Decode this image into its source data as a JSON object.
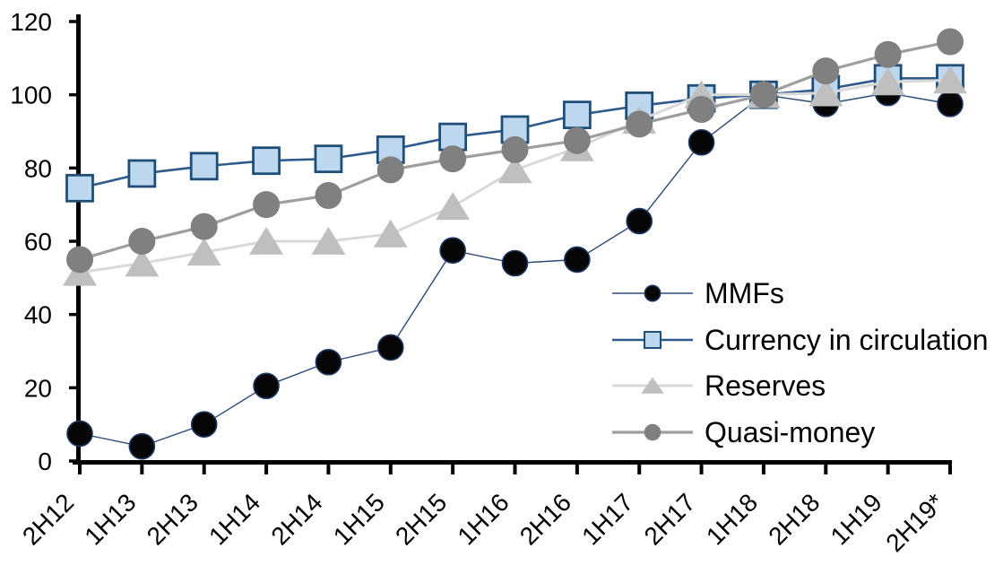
{
  "chart_data": {
    "type": "line",
    "categories": [
      "2H12",
      "1H13",
      "2H13",
      "1H14",
      "2H14",
      "1H15",
      "2H15",
      "1H16",
      "2H16",
      "1H17",
      "2H17",
      "1H18",
      "2H18",
      "1H19",
      "2H19*"
    ],
    "series": [
      {
        "name": "MMFs",
        "marker": "circle",
        "marker_fill": "#060606",
        "marker_stroke": "#1F3864",
        "line_color": "#2B4A77",
        "line_width": 1.4,
        "marker_size": 28,
        "values": [
          7.5,
          4,
          10,
          20.5,
          27,
          31,
          57.5,
          54,
          55,
          65.5,
          87,
          100,
          97.5,
          100.5,
          97.5
        ]
      },
      {
        "name": "Currency in circulation",
        "marker": "square",
        "marker_fill": "#BDD7EE",
        "marker_stroke": "#1F4E79",
        "line_color": "#2E5B8C",
        "line_width": 2.6,
        "marker_size": 29,
        "values": [
          74.5,
          78.5,
          80.5,
          82,
          82.5,
          85,
          88.5,
          90.5,
          94.5,
          97,
          99,
          100,
          101.5,
          104.5,
          104.5
        ]
      },
      {
        "name": "Reserves",
        "marker": "triangle",
        "marker_fill": "#BFBFBF",
        "marker_stroke": "none",
        "line_color": "#D9D9D9",
        "line_width": 3,
        "marker_size": 33,
        "values": [
          51.5,
          54,
          57,
          60,
          60,
          62,
          69.5,
          79.5,
          85.5,
          93,
          100,
          100,
          100.5,
          103.5,
          104
        ]
      },
      {
        "name": "Quasi-money",
        "marker": "circle",
        "marker_fill": "#808080",
        "marker_stroke": "none",
        "line_color": "#9E9E9E",
        "line_width": 3.2,
        "marker_size": 30,
        "values": [
          55,
          60,
          64,
          70,
          72.5,
          79.5,
          82.5,
          85,
          87.5,
          92,
          96,
          100,
          106.5,
          111,
          114.5
        ]
      }
    ],
    "y_axis": {
      "min": 0,
      "max": 120,
      "step": 20,
      "tick_labels": [
        "0",
        "20",
        "40",
        "60",
        "80",
        "100",
        "120"
      ]
    },
    "x_axis": {
      "label_rotation": -45
    },
    "legend": {
      "position": "inside-right",
      "entries": [
        "MMFs",
        "Currency in circulation",
        "Reserves",
        "Quasi-money"
      ]
    },
    "grid": false,
    "axis_color": "#000000",
    "background": "#FFFFFF"
  }
}
